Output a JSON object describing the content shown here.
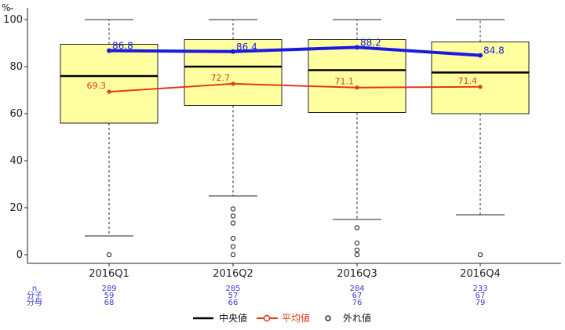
{
  "chart_data": {
    "type": "box",
    "y_unit": "%",
    "ylim": [
      0,
      100
    ],
    "y_ticks": [
      0,
      20,
      40,
      60,
      80,
      100
    ],
    "categories": [
      "2016Q1",
      "2016Q2",
      "2016Q3",
      "2016Q4"
    ],
    "boxes": [
      {
        "whisker_low": 8,
        "q1": 56,
        "median": 76,
        "q3": 89.5,
        "whisker_high": 100,
        "outliers": [
          0
        ]
      },
      {
        "whisker_low": 25,
        "q1": 63.5,
        "median": 80,
        "q3": 91.5,
        "whisker_high": 100,
        "outliers": [
          19.5,
          16.5,
          13.5,
          7,
          3.5,
          0
        ]
      },
      {
        "whisker_low": 15,
        "q1": 60.5,
        "median": 78.5,
        "q3": 91.5,
        "whisker_high": 100,
        "outliers": [
          11.5,
          5,
          2,
          0
        ]
      },
      {
        "whisker_low": 17,
        "q1": 60,
        "median": 77.5,
        "q3": 90.5,
        "whisker_high": 100,
        "outliers": [
          0
        ]
      }
    ],
    "series": [
      {
        "values": [
          86.8,
          86.4,
          88.2,
          84.8
        ],
        "labels": [
          "86.8",
          "86.4",
          "88.2",
          "84.8"
        ],
        "color": "#1a1ae0"
      },
      {
        "values": [
          69.3,
          72.7,
          71.1,
          71.4
        ],
        "labels": [
          "69.3",
          "72.7",
          "71.1",
          "71.4"
        ],
        "color": "#e03a1a"
      }
    ],
    "stats": {
      "row_labels": [
        "n",
        "分子",
        "分母"
      ],
      "n": [
        "289",
        "285",
        "284",
        "233"
      ],
      "num": [
        "59",
        "57",
        "67",
        "67"
      ],
      "den": [
        "68",
        "66",
        "76",
        "79"
      ]
    },
    "legend": {
      "median": "中央値",
      "mean": "平均値",
      "outlier": "外れ値"
    },
    "colors": {
      "box_fill": "#ffffa0",
      "mean_line": "#e03a1a",
      "top_line": "#1a1ae0",
      "stat_text": "#3b3bd6"
    }
  }
}
